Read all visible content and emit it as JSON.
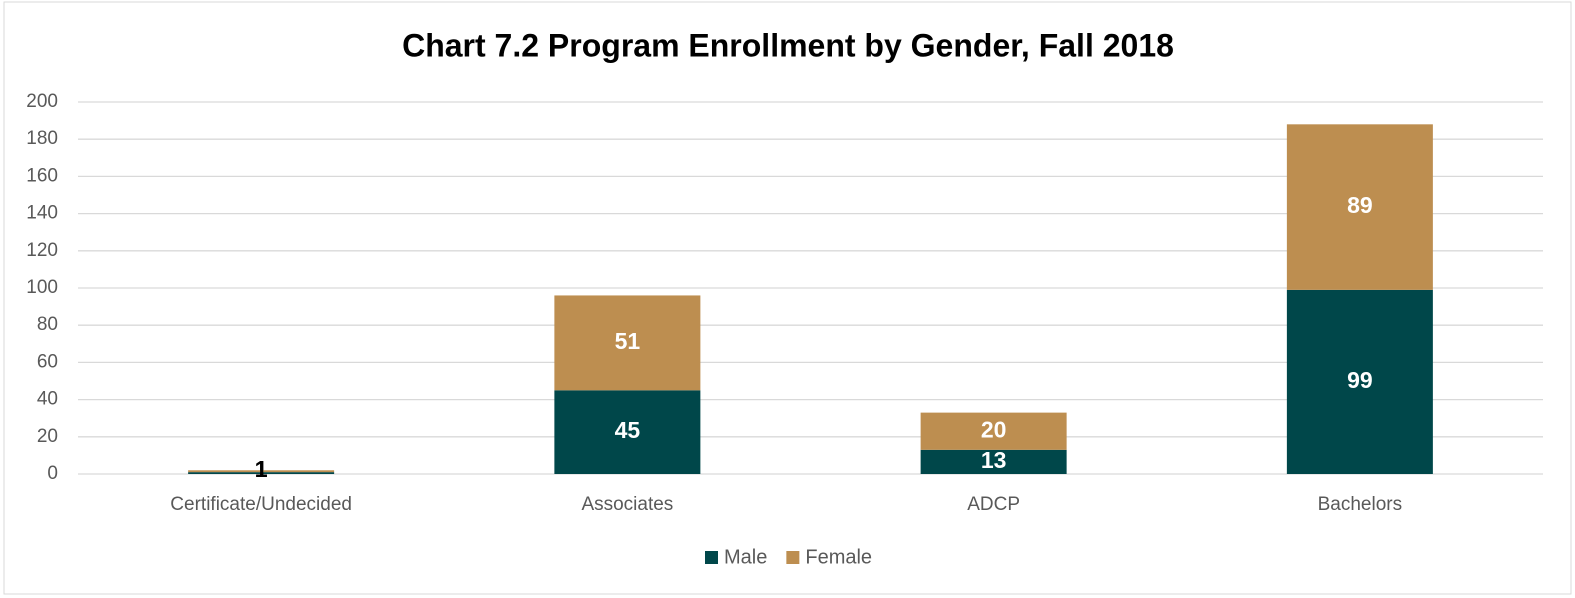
{
  "chart_data": {
    "type": "stacked-bar",
    "title": "Chart 7.2 Program Enrollment by Gender, Fall 2018",
    "categories": [
      "Certificate/Undecided",
      "Associates",
      "ADCP",
      "Bachelors"
    ],
    "series": [
      {
        "name": "Male",
        "color": "#00474a",
        "values": [
          1,
          45,
          13,
          99
        ]
      },
      {
        "name": "Female",
        "color": "#bd8e50",
        "values": [
          1,
          51,
          20,
          89
        ]
      }
    ],
    "ylim": [
      0,
      200
    ],
    "yticks": [
      0,
      20,
      40,
      60,
      80,
      100,
      120,
      140,
      160,
      180,
      200
    ],
    "grid": true,
    "legend": "bottom"
  }
}
